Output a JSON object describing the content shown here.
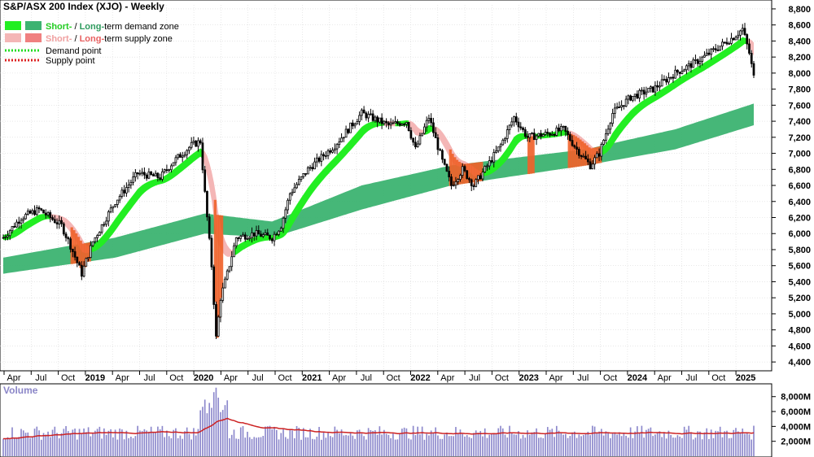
{
  "title": "S&P/ASX 200 Index (XJO) - Weekly",
  "legend": {
    "row1": {
      "short": "Short-",
      "sep": " / ",
      "long": "Long-",
      "rest": "term demand zone"
    },
    "row2": {
      "short": "Short-",
      "sep": " / ",
      "long": "Long-",
      "rest": "term supply zone"
    },
    "row3": "Demand point",
    "row4": "Supply point"
  },
  "colors": {
    "short_demand": "#22ee22",
    "long_demand": "#3cb371",
    "short_supply": "#f4b6b6",
    "long_supply": "#f0622a",
    "demand_point": "#22dd22",
    "supply_point": "#dd2222",
    "candle": "#000000",
    "volume_bar": "#8c88cc",
    "volume_ma": "#cc2222",
    "grid": "#d9d9d9"
  },
  "volume_panel": {
    "title": "Volume",
    "ticks": [
      "8,000M",
      "6,000M",
      "4,000M",
      "2,000M"
    ]
  },
  "chart_data": {
    "type": "candlestick",
    "title": "S&P/ASX 200 Index (XJO) - Weekly",
    "interval": "weekly",
    "x_tick_labels": [
      "Apr",
      "Jul",
      "Oct",
      "2019",
      "Apr",
      "Jul",
      "Oct",
      "2020",
      "Apr",
      "Jul",
      "Oct",
      "2021",
      "Apr",
      "Jul",
      "Oct",
      "2022",
      "Apr",
      "Jul",
      "Oct",
      "2023",
      "Apr",
      "Jul",
      "Oct",
      "2024",
      "Apr",
      "Jul",
      "Oct",
      "2025"
    ],
    "y_tick_labels": [
      "8,800",
      "8,600",
      "8,400",
      "8,200",
      "8,000",
      "7,800",
      "7,600",
      "7,400",
      "7,200",
      "7,000",
      "6,800",
      "6,600",
      "6,400",
      "6,200",
      "6,000",
      "5,800",
      "5,600",
      "5,400",
      "5,200",
      "5,000",
      "4,800",
      "4,600",
      "4,400"
    ],
    "ylim": [
      4300,
      8850
    ],
    "price_path": [
      {
        "week": 0,
        "close": 5950
      },
      {
        "week": 8,
        "close": 6200
      },
      {
        "week": 16,
        "close": 6300
      },
      {
        "week": 26,
        "close": 6100
      },
      {
        "week": 30,
        "close": 5850
      },
      {
        "week": 35,
        "close": 5500
      },
      {
        "week": 40,
        "close": 5900
      },
      {
        "week": 50,
        "close": 6400
      },
      {
        "week": 60,
        "close": 6750
      },
      {
        "week": 70,
        "close": 6700
      },
      {
        "week": 76,
        "close": 6900
      },
      {
        "week": 84,
        "close": 7100
      },
      {
        "week": 88,
        "close": 7150
      },
      {
        "week": 90,
        "close": 6500
      },
      {
        "week": 93,
        "close": 5600
      },
      {
        "week": 95,
        "close": 4700
      },
      {
        "week": 97,
        "close": 5200
      },
      {
        "week": 100,
        "close": 5500
      },
      {
        "week": 104,
        "close": 5950
      },
      {
        "week": 112,
        "close": 6000
      },
      {
        "week": 120,
        "close": 5950
      },
      {
        "week": 124,
        "close": 6100
      },
      {
        "week": 128,
        "close": 6500
      },
      {
        "week": 136,
        "close": 6800
      },
      {
        "week": 148,
        "close": 7100
      },
      {
        "week": 160,
        "close": 7500
      },
      {
        "week": 164,
        "close": 7450
      },
      {
        "week": 172,
        "close": 7350
      },
      {
        "week": 180,
        "close": 7400
      },
      {
        "week": 184,
        "close": 7050
      },
      {
        "week": 190,
        "close": 7450
      },
      {
        "week": 196,
        "close": 6900
      },
      {
        "week": 200,
        "close": 6600
      },
      {
        "week": 205,
        "close": 6800
      },
      {
        "week": 210,
        "close": 6600
      },
      {
        "week": 215,
        "close": 6800
      },
      {
        "week": 222,
        "close": 7100
      },
      {
        "week": 228,
        "close": 7450
      },
      {
        "week": 234,
        "close": 7200
      },
      {
        "week": 244,
        "close": 7250
      },
      {
        "week": 250,
        "close": 7300
      },
      {
        "week": 256,
        "close": 7050
      },
      {
        "week": 262,
        "close": 6850
      },
      {
        "week": 266,
        "close": 7000
      },
      {
        "week": 272,
        "close": 7500
      },
      {
        "week": 280,
        "close": 7700
      },
      {
        "week": 290,
        "close": 7800
      },
      {
        "week": 300,
        "close": 8000
      },
      {
        "week": 310,
        "close": 8150
      },
      {
        "week": 318,
        "close": 8300
      },
      {
        "week": 326,
        "close": 8450
      },
      {
        "week": 330,
        "close": 8550
      },
      {
        "week": 333,
        "close": 8250
      },
      {
        "week": 335,
        "close": 7950
      }
    ],
    "long_term_demand_zone": [
      {
        "week": 0,
        "low": 5500,
        "high": 5700
      },
      {
        "week": 50,
        "low": 5700,
        "high": 5950
      },
      {
        "week": 90,
        "low": 6000,
        "high": 6250
      },
      {
        "week": 120,
        "low": 5950,
        "high": 6150
      },
      {
        "week": 160,
        "low": 6300,
        "high": 6600
      },
      {
        "week": 200,
        "low": 6600,
        "high": 6850
      },
      {
        "week": 260,
        "low": 6850,
        "high": 7050
      },
      {
        "week": 300,
        "low": 7050,
        "high": 7300
      },
      {
        "week": 335,
        "low": 7350,
        "high": 7620
      }
    ],
    "volume_ylim": [
      0,
      9500
    ],
    "volume_unit": "M"
  }
}
